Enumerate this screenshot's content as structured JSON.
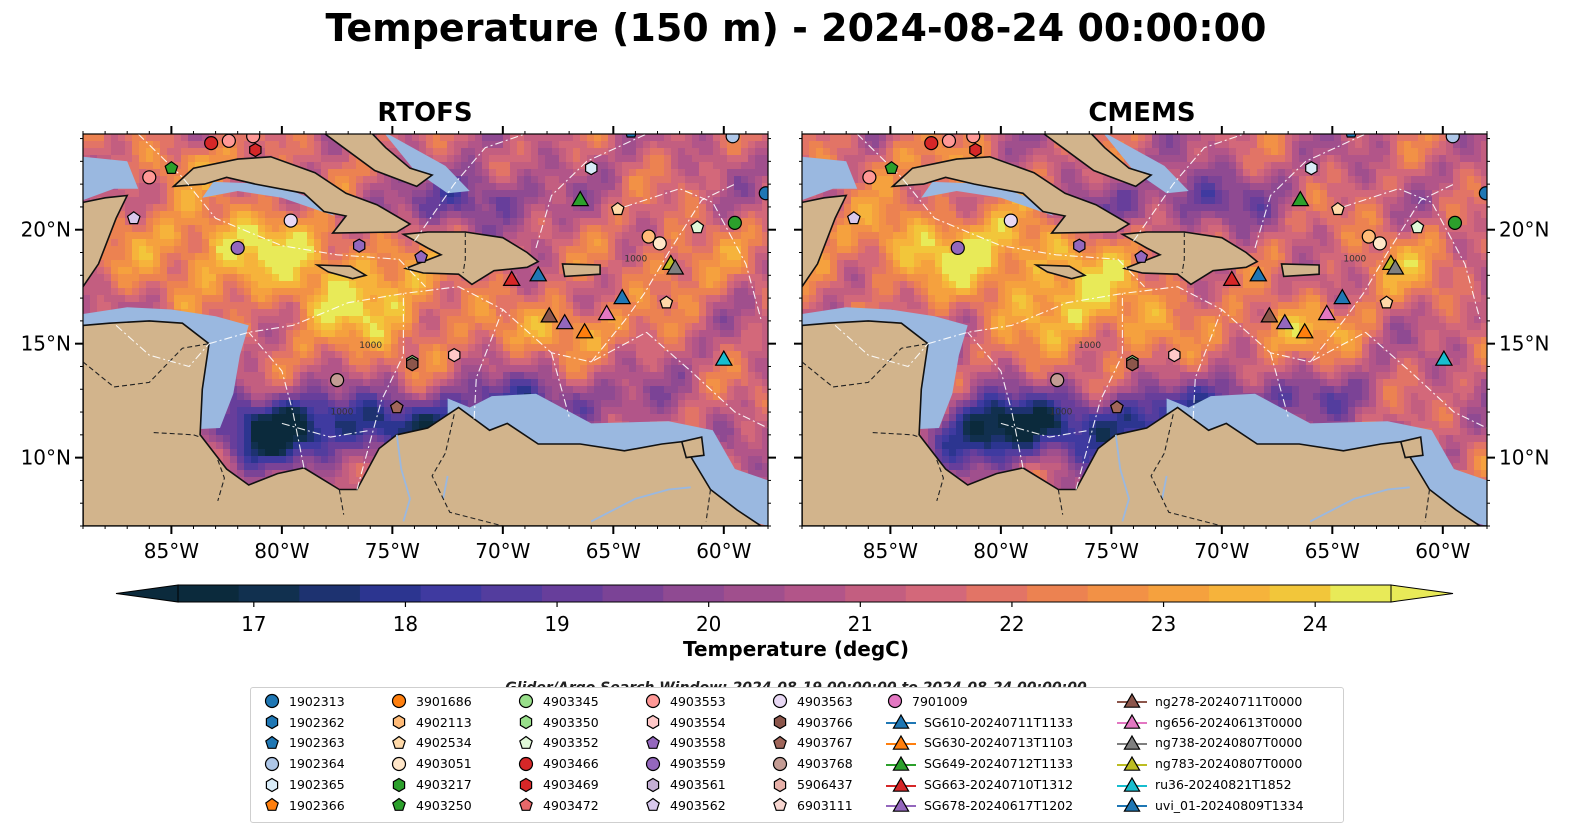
{
  "title": "Temperature (150 m) - 2024-08-24 00:00:00",
  "panels": [
    {
      "title": "RTOFS"
    },
    {
      "title": "CMEMS"
    }
  ],
  "map": {
    "lon_range": [
      -89,
      -58
    ],
    "lat_range": [
      7,
      24.2
    ],
    "lon_ticks": [
      "85°W",
      "80°W",
      "75°W",
      "70°W",
      "65°W",
      "60°W"
    ],
    "lon_tick_values": [
      -85,
      -80,
      -75,
      -70,
      -65,
      -60
    ],
    "lat_ticks": [
      "20°N",
      "15°N",
      "10°N"
    ],
    "lat_tick_values": [
      20,
      15,
      10
    ],
    "land_color": "#d2b48c",
    "shelf_color": "#9ab8e0",
    "contour_labels": [
      "1000",
      "1000",
      "1000"
    ]
  },
  "colorbar": {
    "label": "Temperature (degC)",
    "range": [
      16.5,
      24.5
    ],
    "ticks": [
      17,
      18,
      19,
      20,
      21,
      22,
      23,
      24
    ],
    "tick_labels": [
      "17",
      "18",
      "19",
      "20",
      "21",
      "22",
      "23",
      "24"
    ],
    "colors": [
      "#0b2a3c",
      "#11304f",
      "#1d3270",
      "#2c3590",
      "#3f3aa0",
      "#533d9e",
      "#673e9b",
      "#7b4396",
      "#8f4a92",
      "#a04f8d",
      "#b25589",
      "#c35e80",
      "#d3687a",
      "#e27466",
      "#ec8251",
      "#f29146",
      "#f5a13e",
      "#f6b33b",
      "#f2c63a",
      "#e8ea58"
    ],
    "extend": "both"
  },
  "search_window": "Glider/Argo Search Window: 2024-08-19 00:00:00 to 2024-08-24 00:00:00",
  "legend": {
    "items": [
      {
        "label": "1902313",
        "marker": "circle",
        "color": "#1f77b4"
      },
      {
        "label": "1902362",
        "marker": "hexagon",
        "color": "#1f77b4"
      },
      {
        "label": "1902363",
        "marker": "pentagon",
        "color": "#1f77b4"
      },
      {
        "label": "1902364",
        "marker": "circle",
        "color": "#aec7e8"
      },
      {
        "label": "1902365",
        "marker": "hexagon",
        "color": "#d9ecf8"
      },
      {
        "label": "1902366",
        "marker": "pentagon",
        "color": "#ff7f0e"
      },
      {
        "label": "3901686",
        "marker": "circle",
        "color": "#ff7f0e"
      },
      {
        "label": "4902113",
        "marker": "hexagon",
        "color": "#ffbb78"
      },
      {
        "label": "4902534",
        "marker": "pentagon",
        "color": "#ffd9a8"
      },
      {
        "label": "4903051",
        "marker": "circle",
        "color": "#ffe6c8"
      },
      {
        "label": "4903217",
        "marker": "hexagon",
        "color": "#2ca02c"
      },
      {
        "label": "4903250",
        "marker": "pentagon",
        "color": "#2ca02c"
      },
      {
        "label": "4903345",
        "marker": "circle",
        "color": "#98df8a"
      },
      {
        "label": "4903350",
        "marker": "hexagon",
        "color": "#98df8a"
      },
      {
        "label": "4903352",
        "marker": "pentagon",
        "color": "#e0f8d8"
      },
      {
        "label": "4903466",
        "marker": "circle",
        "color": "#d62728"
      },
      {
        "label": "4903469",
        "marker": "hexagon",
        "color": "#d62728"
      },
      {
        "label": "4903472",
        "marker": "pentagon",
        "color": "#e8686a"
      },
      {
        "label": "4903553",
        "marker": "circle",
        "color": "#ff9896"
      },
      {
        "label": "4903554",
        "marker": "hexagon",
        "color": "#ffc8c8"
      },
      {
        "label": "4903558",
        "marker": "pentagon",
        "color": "#9467bd"
      },
      {
        "label": "4903559",
        "marker": "circle",
        "color": "#9467bd"
      },
      {
        "label": "4903561",
        "marker": "hexagon",
        "color": "#c5b0d5"
      },
      {
        "label": "4903562",
        "marker": "pentagon",
        "color": "#d8c8ec"
      },
      {
        "label": "4903563",
        "marker": "circle",
        "color": "#e8d8f4"
      },
      {
        "label": "4903766",
        "marker": "hexagon",
        "color": "#8c564b"
      },
      {
        "label": "4903767",
        "marker": "pentagon",
        "color": "#a0665a"
      },
      {
        "label": "4903768",
        "marker": "circle",
        "color": "#c49c94"
      },
      {
        "label": "5906437",
        "marker": "hexagon",
        "color": "#e6b0a8"
      },
      {
        "label": "6903111",
        "marker": "pentagon",
        "color": "#f7d6d0"
      },
      {
        "label": "7901009",
        "marker": "circle",
        "color": "#e377c2"
      },
      {
        "label": "SG610-20240711T1133",
        "marker": "triangle-line",
        "color": "#1f77b4"
      },
      {
        "label": "SG630-20240713T1103",
        "marker": "triangle-line",
        "color": "#ff7f0e"
      },
      {
        "label": "SG649-20240712T1133",
        "marker": "triangle-line",
        "color": "#2ca02c"
      },
      {
        "label": "SG663-20240710T1312",
        "marker": "triangle-line",
        "color": "#d62728"
      },
      {
        "label": "SG678-20240617T1202",
        "marker": "triangle-line",
        "color": "#9467bd"
      },
      {
        "label": "ng278-20240711T0000",
        "marker": "triangle-line",
        "color": "#8c564b"
      },
      {
        "label": "ng656-20240613T0000",
        "marker": "triangle-line",
        "color": "#e377c2"
      },
      {
        "label": "ng738-20240807T0000",
        "marker": "triangle-line",
        "color": "#7f7f7f"
      },
      {
        "label": "ng783-20240807T0000",
        "marker": "triangle-line",
        "color": "#bcbd22"
      },
      {
        "label": "ru36-20240821T1852",
        "marker": "triangle-line",
        "color": "#17becf"
      },
      {
        "label": "uvi_01-20240809T1334",
        "marker": "triangle-line",
        "color": "#1f77b4"
      }
    ]
  },
  "observations": [
    {
      "lon": -81.3,
      "lat": 24.1,
      "marker": "circle",
      "color": "#ff9896"
    },
    {
      "lon": -83.2,
      "lat": 23.8,
      "marker": "circle",
      "color": "#d62728"
    },
    {
      "lon": -82.4,
      "lat": 23.9,
      "marker": "circle",
      "color": "#ff9896"
    },
    {
      "lon": -81.2,
      "lat": 23.5,
      "marker": "hexagon",
      "color": "#d62728"
    },
    {
      "lon": -85.0,
      "lat": 22.7,
      "marker": "pentagon",
      "color": "#2ca02c"
    },
    {
      "lon": -86.0,
      "lat": 22.3,
      "marker": "circle",
      "color": "#ff9896"
    },
    {
      "lon": -86.7,
      "lat": 20.5,
      "marker": "pentagon",
      "color": "#d8c8ec"
    },
    {
      "lon": -79.6,
      "lat": 20.4,
      "marker": "circle",
      "color": "#e8d8f4"
    },
    {
      "lon": -82.0,
      "lat": 19.2,
      "marker": "circle",
      "color": "#9467bd"
    },
    {
      "lon": -76.5,
      "lat": 19.3,
      "marker": "hexagon",
      "color": "#9467bd"
    },
    {
      "lon": -73.7,
      "lat": 18.8,
      "marker": "pentagon",
      "color": "#9467bd"
    },
    {
      "lon": -66.0,
      "lat": 22.7,
      "marker": "hexagon",
      "color": "#d9ecf8"
    },
    {
      "lon": -64.8,
      "lat": 20.9,
      "marker": "pentagon",
      "color": "#ffd9a8"
    },
    {
      "lon": -63.4,
      "lat": 19.7,
      "marker": "circle",
      "color": "#ffbb78"
    },
    {
      "lon": -62.9,
      "lat": 19.4,
      "marker": "circle",
      "color": "#ffe6c8"
    },
    {
      "lon": -61.2,
      "lat": 20.1,
      "marker": "pentagon",
      "color": "#e0f8d8"
    },
    {
      "lon": -59.5,
      "lat": 20.3,
      "marker": "circle",
      "color": "#2ca02c"
    },
    {
      "lon": -59.6,
      "lat": 24.1,
      "marker": "circle",
      "color": "#aec7e8"
    },
    {
      "lon": -58.1,
      "lat": 21.6,
      "marker": "circle",
      "color": "#1f77b4"
    },
    {
      "lon": -62.6,
      "lat": 16.8,
      "marker": "pentagon",
      "color": "#ffd9a8"
    },
    {
      "lon": -74.1,
      "lat": 14.2,
      "marker": "hexagon",
      "color": "#98df8a"
    },
    {
      "lon": -72.2,
      "lat": 14.5,
      "marker": "hexagon",
      "color": "#ffc8c8"
    },
    {
      "lon": -77.5,
      "lat": 13.4,
      "marker": "circle",
      "color": "#c49c94"
    },
    {
      "lon": -74.1,
      "lat": 14.1,
      "marker": "hexagon",
      "color": "#8c564b"
    },
    {
      "lon": -74.8,
      "lat": 12.2,
      "marker": "pentagon",
      "color": "#a0665a"
    },
    {
      "lon": -64.2,
      "lat": 24.3,
      "marker": "pentagon",
      "color": "#1f77b4"
    }
  ],
  "gliders": [
    {
      "lon": -66.5,
      "lat": 21.3,
      "color": "#2ca02c"
    },
    {
      "lon": -68.4,
      "lat": 18.0,
      "color": "#1f77b4"
    },
    {
      "lon": -69.6,
      "lat": 17.8,
      "color": "#d62728"
    },
    {
      "lon": -62.4,
      "lat": 18.5,
      "color": "#bcbd22"
    },
    {
      "lon": -62.2,
      "lat": 18.3,
      "color": "#7f7f7f"
    },
    {
      "lon": -64.6,
      "lat": 17.0,
      "color": "#1f77b4"
    },
    {
      "lon": -67.9,
      "lat": 16.2,
      "color": "#8c564b"
    },
    {
      "lon": -67.2,
      "lat": 15.9,
      "color": "#9467bd"
    },
    {
      "lon": -65.3,
      "lat": 16.3,
      "color": "#e377c2"
    },
    {
      "lon": -66.3,
      "lat": 15.5,
      "color": "#ff7f0e"
    },
    {
      "lon": -60.0,
      "lat": 14.3,
      "color": "#17becf"
    }
  ]
}
